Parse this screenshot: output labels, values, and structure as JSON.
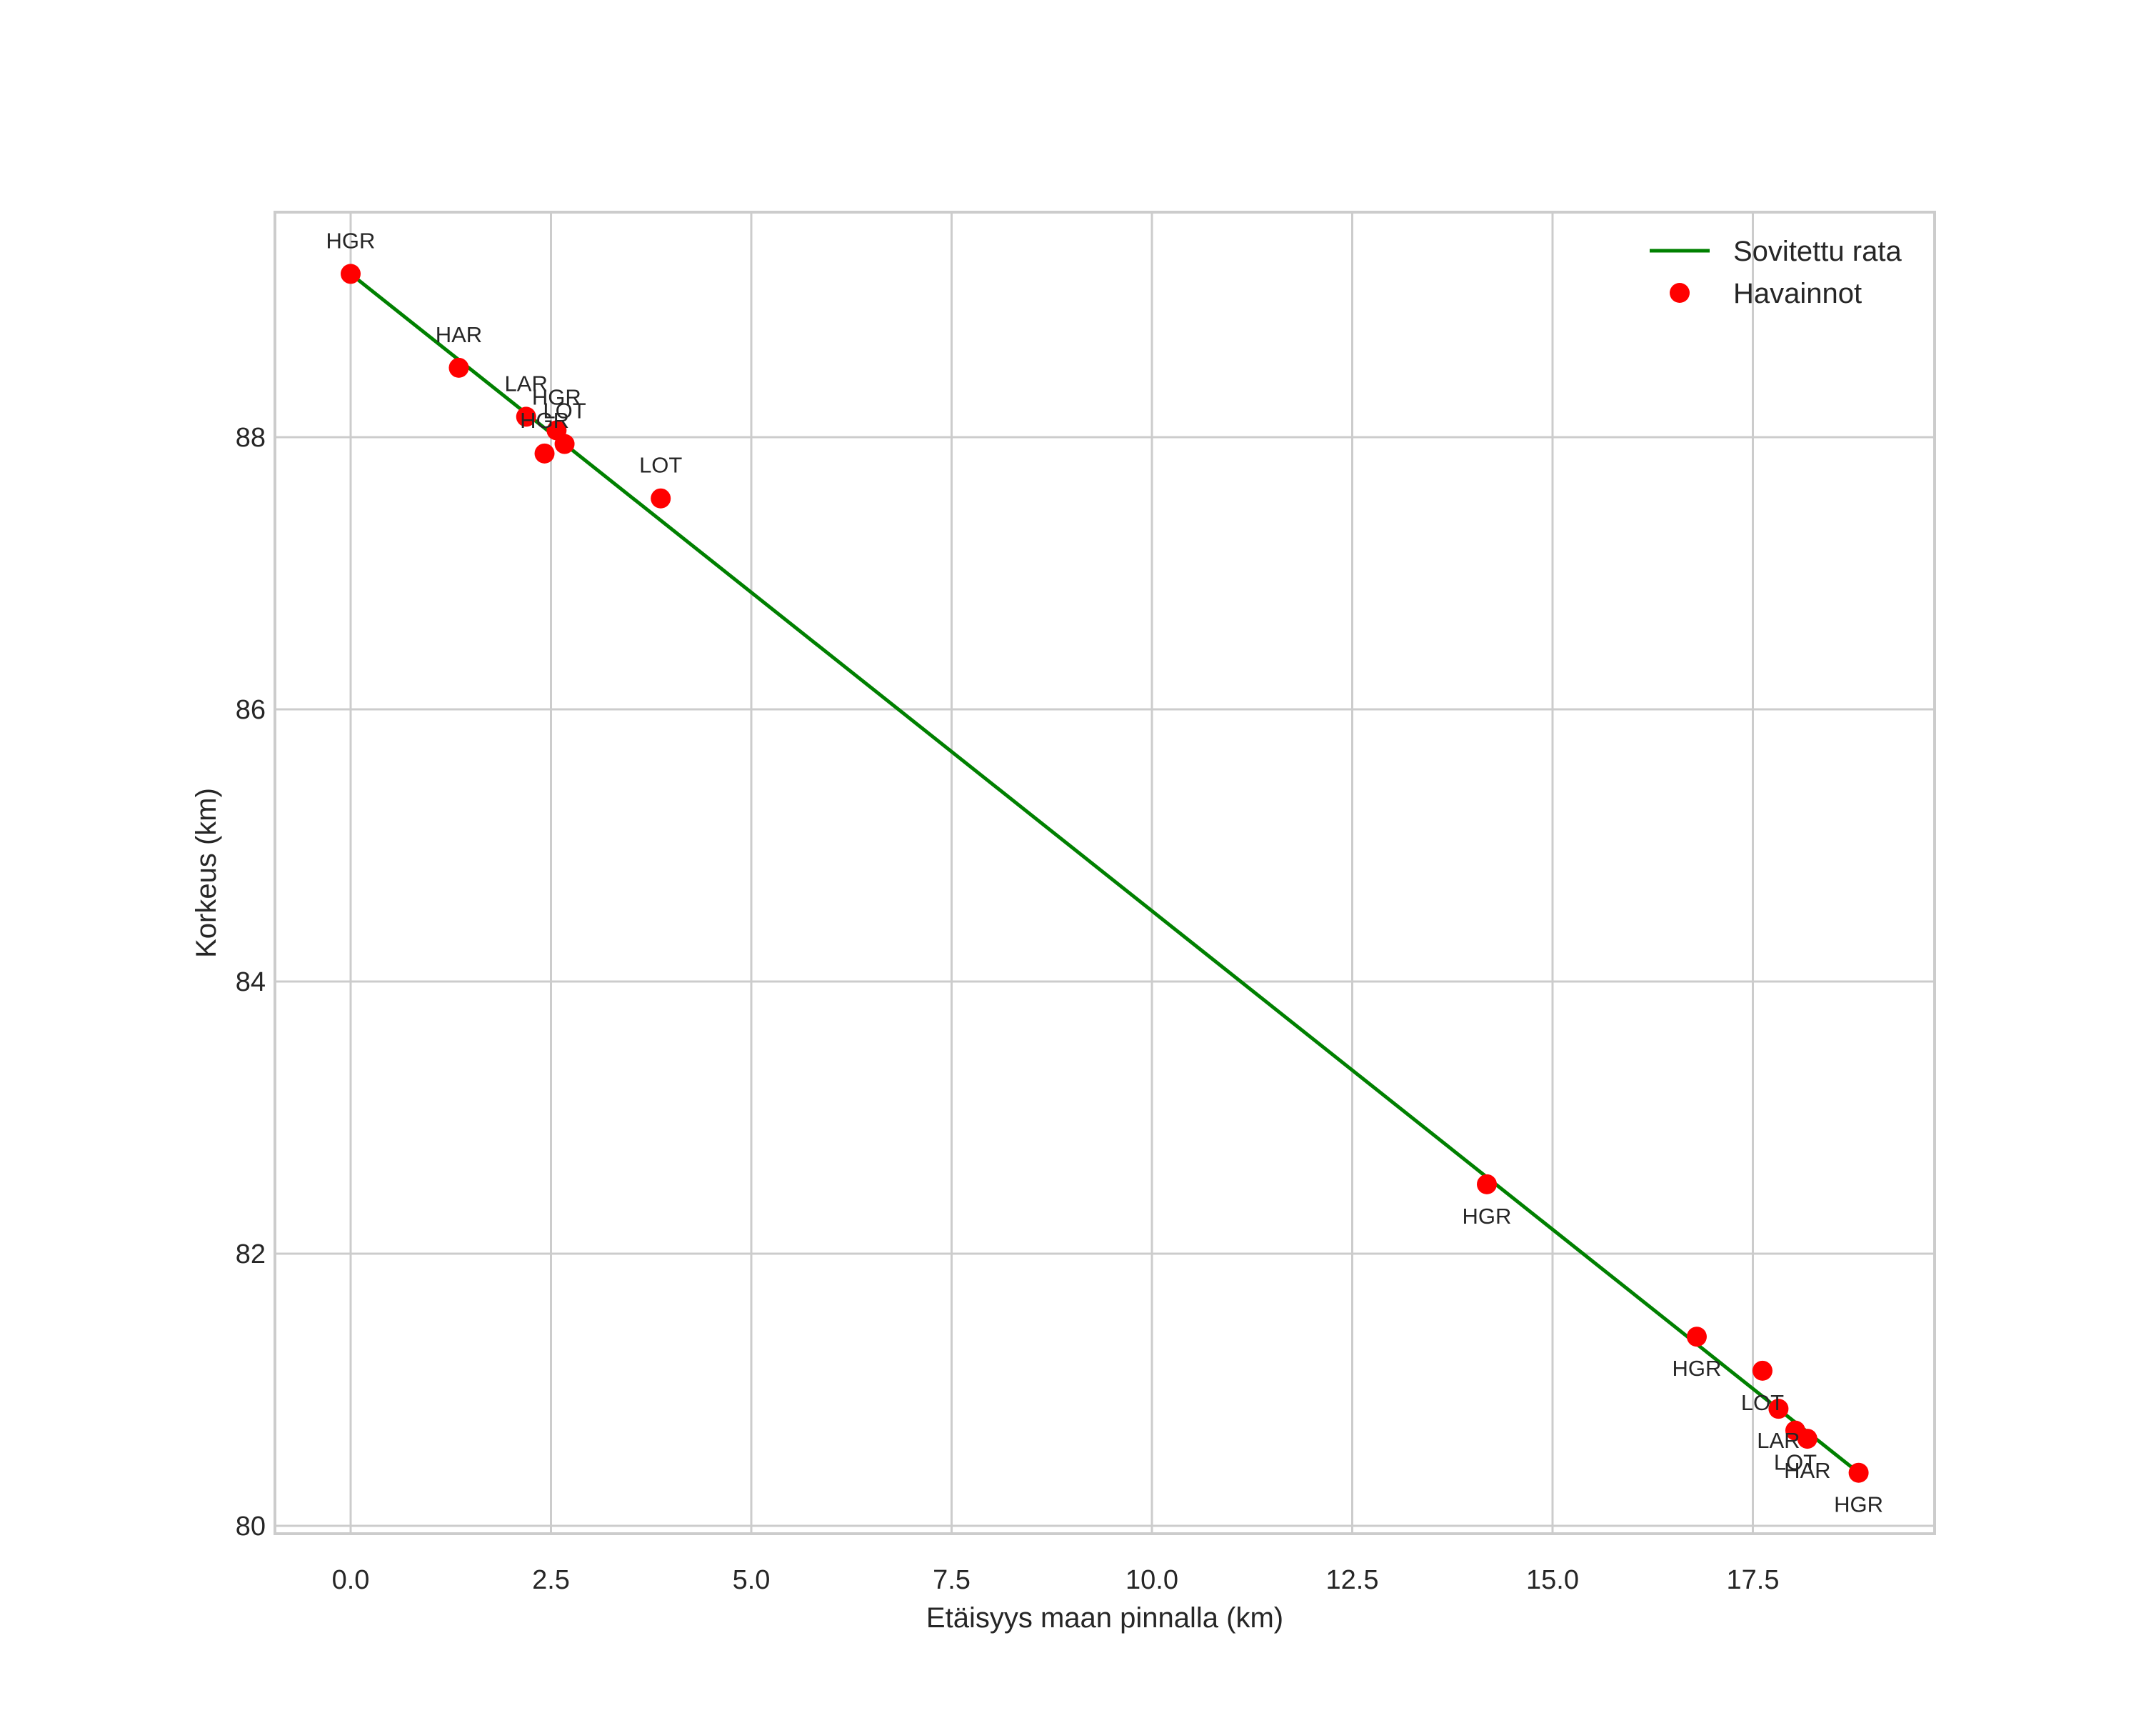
{
  "chart_data": {
    "type": "line+scatter",
    "title": "",
    "xlabel": "Etäisyys maan pinnalla (km)",
    "ylabel": "Korkeus (km)",
    "xlim": [
      -0.95,
      19.75
    ],
    "ylim": [
      79.95,
      89.65
    ],
    "xticks": [
      0.0,
      2.5,
      5.0,
      7.5,
      10.0,
      12.5,
      15.0,
      17.5
    ],
    "xtick_labels": [
      "0.0",
      "2.5",
      "5.0",
      "7.5",
      "10.0",
      "12.5",
      "15.0",
      "17.5"
    ],
    "yticks": [
      80,
      82,
      84,
      86,
      88
    ],
    "ytick_labels": [
      "80",
      "82",
      "84",
      "86",
      "88"
    ],
    "grid": true,
    "legend": {
      "position": "upper right",
      "entries": [
        {
          "label": "Sovitettu rata",
          "marker": "line",
          "color": "#008000"
        },
        {
          "label": "Havainnot",
          "marker": "circle",
          "color": "#ff0000"
        }
      ]
    },
    "series": [
      {
        "name": "Sovitettu rata",
        "type": "line",
        "color": "#008000",
        "x": [
          0.0,
          18.82
        ],
        "y": [
          89.2,
          80.39
        ]
      },
      {
        "name": "Havainnot",
        "type": "scatter",
        "color": "#ff0000",
        "points": [
          {
            "x": 0.0,
            "y": 89.2,
            "label": "HGR",
            "label_pos": "above"
          },
          {
            "x": 1.35,
            "y": 88.51,
            "label": "HAR",
            "label_pos": "above"
          },
          {
            "x": 2.19,
            "y": 88.15,
            "label": "LAR",
            "label_pos": "above"
          },
          {
            "x": 2.57,
            "y": 88.05,
            "label": "HGR",
            "label_pos": "above"
          },
          {
            "x": 2.67,
            "y": 87.95,
            "label": "LOT",
            "label_pos": "above"
          },
          {
            "x": 2.42,
            "y": 87.88,
            "label": "HGR",
            "label_pos": "above"
          },
          {
            "x": 3.87,
            "y": 87.55,
            "label": "LOT",
            "label_pos": "above"
          },
          {
            "x": 14.18,
            "y": 82.51,
            "label": "HGR",
            "label_pos": "below"
          },
          {
            "x": 16.8,
            "y": 81.39,
            "label": "HGR",
            "label_pos": "below"
          },
          {
            "x": 17.62,
            "y": 81.14,
            "label": "LOT",
            "label_pos": "below"
          },
          {
            "x": 17.82,
            "y": 80.86,
            "label": "LAR",
            "label_pos": "below"
          },
          {
            "x": 18.03,
            "y": 80.7,
            "label": "LOT",
            "label_pos": "below"
          },
          {
            "x": 18.18,
            "y": 80.64,
            "label": "HAR",
            "label_pos": "below"
          },
          {
            "x": 18.82,
            "y": 80.39,
            "label": "HGR",
            "label_pos": "below"
          }
        ]
      }
    ]
  }
}
